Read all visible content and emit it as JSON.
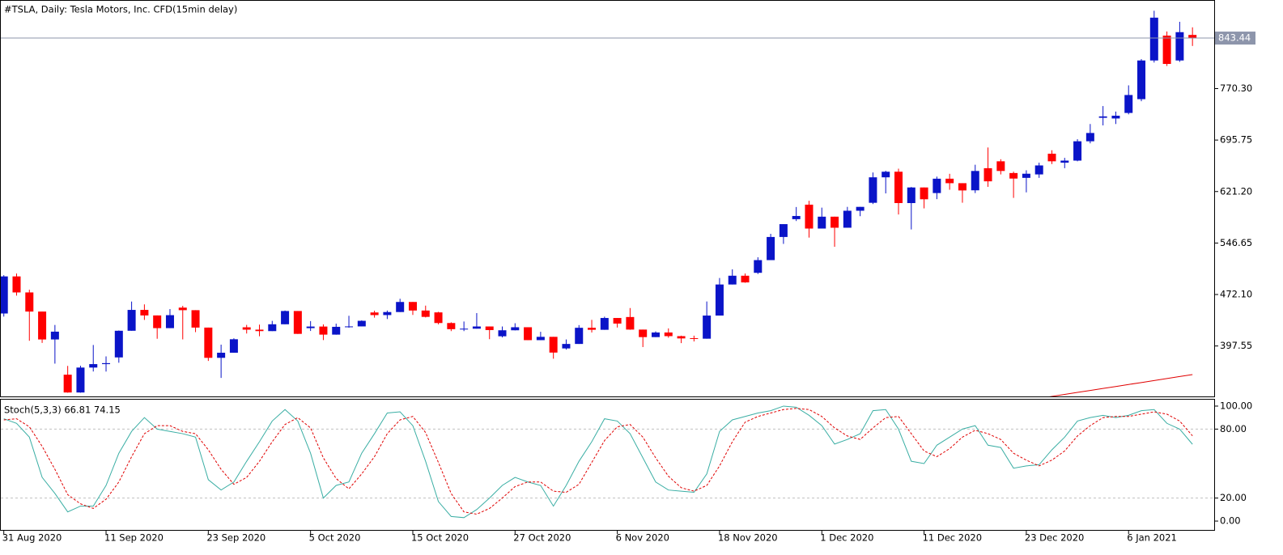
{
  "chart_data": [
    {
      "type": "candlestick",
      "title": "#TSLA, Daily:  Tesla Motors, Inc.  CFD(15min delay)",
      "categories": [
        "31 Aug 2020",
        null,
        null,
        null,
        null,
        null,
        null,
        null,
        "11 Sep 2020",
        null,
        null,
        null,
        null,
        null,
        null,
        null,
        "23 Sep 2020",
        null,
        null,
        null,
        null,
        null,
        null,
        null,
        "5 Oct 2020",
        null,
        null,
        null,
        null,
        null,
        null,
        null,
        "15 Oct 2020",
        null,
        null,
        null,
        null,
        null,
        null,
        null,
        "27 Oct 2020",
        null,
        null,
        null,
        null,
        null,
        null,
        null,
        "6 Nov 2020",
        null,
        null,
        null,
        null,
        null,
        null,
        null,
        "18 Nov 2020",
        null,
        null,
        null,
        null,
        null,
        null,
        null,
        "1 Dec 2020",
        null,
        null,
        null,
        null,
        null,
        null,
        null,
        "11 Dec 2020",
        null,
        null,
        null,
        null,
        null,
        null,
        null,
        "23 Dec 2020",
        null,
        null,
        null,
        null,
        null,
        null,
        null,
        "6 Jan 2021",
        null,
        null,
        null,
        null,
        null
      ],
      "open": [
        444.6,
        498.3,
        475.1,
        447.4,
        407.0,
        356.0,
        330.2,
        366.3,
        371.3,
        381.0,
        419.6,
        449.8,
        441.8,
        423.4,
        453.1,
        449.4,
        424.2,
        380.4,
        387.8,
        424.6,
        421.2,
        419.1,
        429.0,
        448.2,
        423.4,
        425.7,
        414.0,
        425.3,
        425.9,
        446.1,
        442.3,
        446.7,
        461.3,
        448.9,
        446.2,
        430.8,
        421.9,
        422.6,
        425.8,
        411.6,
        420.3,
        424.7,
        406.0,
        410.8,
        394.0,
        400.5,
        423.9,
        421.0,
        438.1,
        439.5,
        421.3,
        410.4,
        417.1,
        411.8,
        408.9,
        408.1,
        441.6,
        486.6,
        499.3,
        503.5,
        521.9,
        555.4,
        581.2,
        602.2,
        567.6,
        584.8,
        568.8,
        593.4,
        604.9,
        641.8,
        649.9,
        604.5,
        627.1,
        619.0,
        639.8,
        633.3,
        623.0,
        655.0,
        665.0,
        648.0,
        641.0,
        646.0,
        676.0,
        663.0,
        666.0,
        694.0,
        728.0,
        727.0,
        735.0,
        755.0,
        811.0,
        847.0,
        811.0,
        848.0
      ],
      "high": [
        500.1,
        502.5,
        479.0,
        447.4,
        428.0,
        368.7,
        369.0,
        399.0,
        382.5,
        420.0,
        461.9,
        457.8,
        441.8,
        451.0,
        455.7,
        449.4,
        424.2,
        399.5,
        408.7,
        428.1,
        428.5,
        433.9,
        448.9,
        448.2,
        433.6,
        428.8,
        429.9,
        441.3,
        434.6,
        448.7,
        448.9,
        465.9,
        461.3,
        456.0,
        447.0,
        431.8,
        433.0,
        445.2,
        425.8,
        425.8,
        430.5,
        424.7,
        418.1,
        410.8,
        407.0,
        427.8,
        435.4,
        440.0,
        438.1,
        452.5,
        421.3,
        418.7,
        423.0,
        412.5,
        412.5,
        462.0,
        496.0,
        508.6,
        502.5,
        526.0,
        560.0,
        574.0,
        598.8,
        607.8,
        597.9,
        584.8,
        599.0,
        599.0,
        648.8,
        651.3,
        654.3,
        627.8,
        627.1,
        642.8,
        646.9,
        633.3,
        660.0,
        685.0,
        668.0,
        650.0,
        652.0,
        663.0,
        681.0,
        670.0,
        697.0,
        719.0,
        745.0,
        737.0,
        775.0,
        813.0,
        883.0,
        853.0,
        867.0,
        859.0
      ],
      "low": [
        440.1,
        470.5,
        405.1,
        402.0,
        372.0,
        329.9,
        329.9,
        360.6,
        360.5,
        373.3,
        419.6,
        435.3,
        408.0,
        423.4,
        407.1,
        417.6,
        375.9,
        351.3,
        387.8,
        415.6,
        411.6,
        419.1,
        429.0,
        415.0,
        419.3,
        406.1,
        413.9,
        424.0,
        425.9,
        438.6,
        436.6,
        446.7,
        442.5,
        438.9,
        428.9,
        419.1,
        419.1,
        422.6,
        407.4,
        410.0,
        420.1,
        406.0,
        406.0,
        379.1,
        392.3,
        400.5,
        417.1,
        421.0,
        424.3,
        421.0,
        396.0,
        410.4,
        409.5,
        401.7,
        404.1,
        408.1,
        441.6,
        486.6,
        489.1,
        501.8,
        521.9,
        545.4,
        578.5,
        554.5,
        567.6,
        541.2,
        568.8,
        585.5,
        603.1,
        618.5,
        588.0,
        566.3,
        596.8,
        610.2,
        623.8,
        605.0,
        619.0,
        628.0,
        646.0,
        612.0,
        620.0,
        641.0,
        661.0,
        655.0,
        665.0,
        691.0,
        717.0,
        719.0,
        733.0,
        752.0,
        808.0,
        803.0,
        809.0,
        832.0
      ],
      "close": [
        498.3,
        475.1,
        447.4,
        407.0,
        418.3,
        330.2,
        366.3,
        371.3,
        372.7,
        419.6,
        449.8,
        441.8,
        423.4,
        442.2,
        449.4,
        424.2,
        380.4,
        387.8,
        407.3,
        421.2,
        419.1,
        429.0,
        448.2,
        415.1,
        425.7,
        414.0,
        425.3,
        425.9,
        434.0,
        442.3,
        446.7,
        461.3,
        448.9,
        439.7,
        430.8,
        421.9,
        422.6,
        425.8,
        420.6,
        420.3,
        424.7,
        406.0,
        410.8,
        388.0,
        400.5,
        423.9,
        421.0,
        438.1,
        430.0,
        421.3,
        410.4,
        417.1,
        411.8,
        408.5,
        408.1,
        441.6,
        486.6,
        499.3,
        489.6,
        521.9,
        555.4,
        574.0,
        585.8,
        567.6,
        584.8,
        568.8,
        593.4,
        599.0,
        641.8,
        649.9,
        604.5,
        627.1,
        610.0,
        639.8,
        633.3,
        622.8,
        651.0,
        636.0,
        651.0,
        640.0,
        647.0,
        659.0,
        665.0,
        666.0,
        694.0,
        706.0,
        730.0,
        731.0,
        761.0,
        811.0,
        873.0,
        806.0,
        852.0,
        843.44
      ],
      "up_color": "#0a14c8",
      "down_color": "#ff0000",
      "series": [
        {
          "color": "#e00000",
          "values": [
            null,
            null,
            null,
            null,
            null,
            null,
            null,
            null,
            null,
            null,
            null,
            null,
            null,
            null,
            null,
            null,
            null,
            null,
            null,
            null,
            null,
            null,
            null,
            null,
            null,
            null,
            null,
            null,
            null,
            null,
            null,
            null,
            null,
            null,
            null,
            null,
            null,
            null,
            null,
            null,
            null,
            null,
            null,
            null,
            null,
            null,
            null,
            null,
            null,
            null,
            null,
            null,
            null,
            null,
            null,
            null,
            null,
            null,
            null,
            null,
            null,
            null,
            null,
            null,
            null,
            null,
            null,
            null,
            null,
            null,
            null,
            null,
            null,
            null,
            null,
            null,
            null,
            null,
            null,
            null,
            null,
            321.6,
            324.5,
            327.4,
            330.3,
            333.1,
            336.0,
            338.9,
            341.8,
            344.6,
            347.5,
            350.4,
            353.3,
            356.1
          ]
        }
      ],
      "current_price": 843.44,
      "ylim": [
        324.5,
        897.4
      ],
      "yticks": [
        397.55,
        {
          "value": 472.1,
          "label": "472.10"
        },
        546.65,
        {
          "value": 621.2,
          "label": "621.20"
        },
        695.75,
        {
          "value": 770.3,
          "label": "770.30"
        }
      ]
    },
    {
      "type": "line",
      "title": "Stoch(5,3,3) 66.81 74.15",
      "series": [
        {
          "color": "#3aaea4",
          "dashed": false,
          "values": [
            89,
            85,
            73,
            38,
            24,
            8,
            13,
            13,
            31,
            59,
            78,
            90,
            80,
            78,
            76,
            73,
            36,
            27,
            34,
            52,
            69,
            87,
            97,
            87,
            59,
            20,
            31,
            34,
            59,
            76,
            94,
            95,
            83,
            52,
            17,
            4,
            3,
            10,
            20,
            31,
            38,
            34,
            31,
            13,
            31,
            52,
            69,
            89,
            87,
            76,
            55,
            34,
            27,
            26,
            25,
            41,
            78,
            88,
            91,
            94,
            96,
            100,
            99,
            92,
            83,
            67,
            71,
            76,
            96,
            97,
            80,
            52,
            50,
            66,
            73,
            80,
            83,
            66,
            64,
            46,
            48,
            49,
            62,
            73,
            87,
            90,
            92,
            90,
            92,
            96,
            97,
            85,
            80,
            66.81
          ]
        },
        {
          "color": "#e00000",
          "dashed": true,
          "values": [
            88,
            89,
            82,
            65,
            45,
            23,
            15,
            11,
            19,
            34,
            56,
            76,
            83,
            83,
            78,
            76,
            62,
            45,
            32,
            38,
            52,
            69,
            84,
            90,
            81,
            55,
            37,
            28,
            41,
            56,
            76,
            88,
            91,
            77,
            51,
            24,
            8,
            6,
            11,
            20,
            30,
            34,
            34,
            26,
            25,
            32,
            51,
            70,
            82,
            84,
            73,
            55,
            39,
            29,
            26,
            31,
            48,
            69,
            86,
            91,
            94,
            97,
            98,
            97,
            91,
            81,
            74,
            71,
            81,
            90,
            91,
            76,
            61,
            56,
            63,
            73,
            79,
            76,
            71,
            59,
            53,
            48,
            53,
            61,
            74,
            83,
            90,
            91,
            91,
            93,
            95,
            93,
            87,
            74.15
          ]
        }
      ],
      "levels": [
        20,
        80
      ],
      "ylim": [
        -7.7,
        105.6
      ],
      "yticks": [
        {
          "value": 0,
          "label": "0.00"
        },
        {
          "value": 20,
          "label": "20.00"
        },
        {
          "value": 80,
          "label": "80.00"
        },
        {
          "value": 100,
          "label": "100.00"
        }
      ]
    }
  ]
}
